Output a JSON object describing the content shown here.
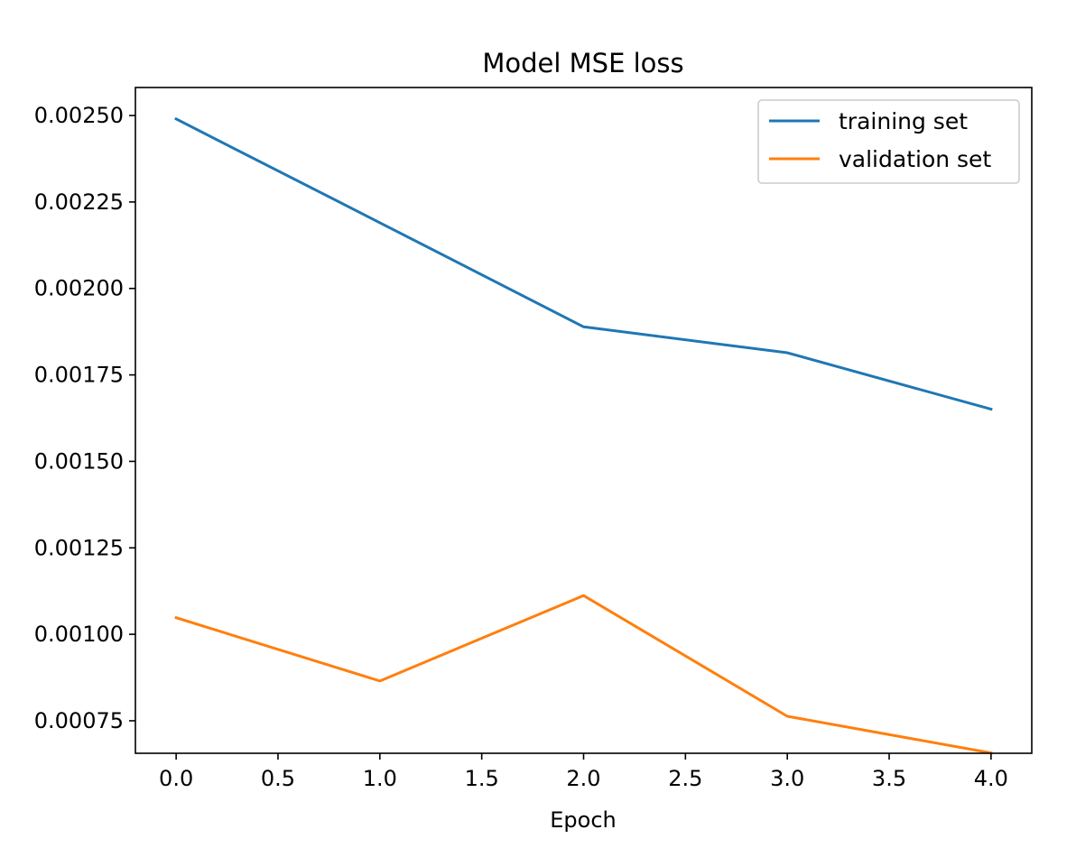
{
  "chart_data": {
    "type": "line",
    "title": "Model MSE loss",
    "xlabel": "Epoch",
    "ylabel": "",
    "x": [
      0,
      1,
      2,
      3,
      4
    ],
    "xlim": [
      -0.2,
      4.2
    ],
    "ylim": [
      0.000656,
      0.002581
    ],
    "xticks": [
      0.0,
      0.5,
      1.0,
      1.5,
      2.0,
      2.5,
      3.0,
      3.5,
      4.0
    ],
    "xtick_labels": [
      "0.0",
      "0.5",
      "1.0",
      "1.5",
      "2.0",
      "2.5",
      "3.0",
      "3.5",
      "4.0"
    ],
    "yticks": [
      0.00075,
      0.001,
      0.00125,
      0.0015,
      0.00175,
      0.002,
      0.00225,
      0.0025
    ],
    "ytick_labels": [
      "0.00075",
      "0.00100",
      "0.00125",
      "0.00150",
      "0.00175",
      "0.00200",
      "0.00225",
      "0.00250"
    ],
    "grid": false,
    "legend_position": "top-right",
    "series": [
      {
        "name": "training set",
        "color": "#1f77b4",
        "values": [
          0.00249,
          0.00219,
          0.001889,
          0.001814,
          0.001651
        ]
      },
      {
        "name": "validation set",
        "color": "#ff7f0e",
        "values": [
          0.001048,
          0.000865,
          0.001112,
          0.000763,
          0.000657
        ]
      }
    ]
  }
}
